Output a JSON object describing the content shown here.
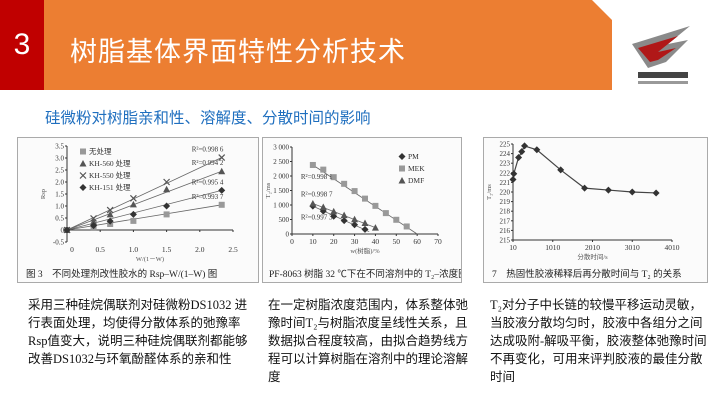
{
  "header": {
    "number": "3",
    "title": "树脂基体界面特性分析技术",
    "accent": "#ec7e32",
    "number_bg": "#c00000"
  },
  "logo": {
    "text": "长春联盟",
    "sub": "GAAST"
  },
  "subtitle": "硅微粉对树脂亲和性、溶解度、分散时间的影响",
  "chart_data": [
    {
      "type": "line",
      "caption": "图 3　不同处理剂改性胶水的 Rsp–W/(1–W) 图",
      "xlabel": "W/(1－W)",
      "ylabel": "Rsp",
      "xlim": [
        0,
        2.5
      ],
      "ylim": [
        -0.5,
        3.5
      ],
      "xticks": [
        0,
        0.5,
        1.0,
        1.5,
        2.0,
        2.5
      ],
      "xtick_labels": [
        "0",
        "0.5",
        "1.0",
        "1.5",
        "2.0",
        "2.5"
      ],
      "yticks": [
        -0.5,
        0,
        0.5,
        1.0,
        1.5,
        2.0,
        2.5,
        3.0,
        3.5
      ],
      "ytick_labels": [
        "-0.5",
        "0",
        "0.5",
        "1.0",
        "1.5",
        "2.0",
        "2.5",
        "3.0",
        "3.5"
      ],
      "legend": "top-left",
      "x": [
        0,
        0.4,
        0.65,
        1.0,
        1.5,
        2.33
      ],
      "series": [
        {
          "name": "无处理",
          "marker": "square",
          "values": [
            0,
            0.12,
            0.25,
            0.38,
            0.65,
            1.05
          ],
          "r2": "R²=0.993 7"
        },
        {
          "name": "KH-560 处理",
          "marker": "triangle",
          "values": [
            0,
            0.35,
            0.65,
            1.07,
            1.7,
            2.45
          ],
          "r2": "R²=0.994 2"
        },
        {
          "name": "KH-550 处理",
          "marker": "cross",
          "values": [
            0,
            0.48,
            0.83,
            1.32,
            2.0,
            3.02
          ],
          "r2": "R²=0.998 6"
        },
        {
          "name": "KH-151 处理",
          "marker": "diamond",
          "values": [
            0,
            0.18,
            0.37,
            0.65,
            1.0,
            1.65
          ],
          "r2": "R²=0.995 4"
        }
      ]
    },
    {
      "type": "line",
      "caption": "PF-8063 树脂 32 ℃下在不同溶剂中的 T₂–浓度图",
      "xlabel": "w(树脂)/%",
      "ylabel": "T₂/ms",
      "xlim": [
        0,
        70
      ],
      "ylim": [
        0,
        3000
      ],
      "xticks": [
        0,
        10,
        20,
        30,
        40,
        50,
        60,
        70
      ],
      "xtick_labels": [
        "0",
        "10",
        "20",
        "30",
        "40",
        "50",
        "60",
        "70"
      ],
      "yticks": [
        0,
        500,
        1000,
        1500,
        2000,
        2500,
        3000
      ],
      "ytick_labels": [
        "0",
        "500",
        "1 000",
        "1 500",
        "2 000",
        "2 500",
        "3 000"
      ],
      "legend": "top-right",
      "series": [
        {
          "name": "PM",
          "marker": "diamond",
          "x": [
            10,
            15,
            20,
            25,
            30,
            35
          ],
          "values": [
            960,
            790,
            610,
            460,
            320,
            160
          ],
          "fit_end": [
            37,
            80
          ],
          "r2": "R²=0.997 3"
        },
        {
          "name": "MEK",
          "marker": "square",
          "x": [
            10,
            15,
            20,
            25,
            30,
            35,
            40,
            45,
            50,
            55
          ],
          "values": [
            2380,
            2220,
            1960,
            1730,
            1480,
            1220,
            970,
            720,
            490,
            260
          ],
          "fit_end": [
            60,
            0
          ],
          "r2": "R²=0.998 1"
        },
        {
          "name": "DMF",
          "marker": "triangle",
          "x": [
            10,
            15,
            20,
            25,
            30,
            35,
            40
          ],
          "values": [
            1050,
            930,
            780,
            650,
            510,
            380,
            220
          ],
          "fit_end": [
            40,
            220
          ],
          "r2": "R²=0.998 7"
        }
      ]
    },
    {
      "type": "line",
      "caption": "7　热固性胶液稀释后再分散时间与 T₂ 的关系",
      "xlabel": "分散时间/s",
      "ylabel": "T₂/ms",
      "xlim": [
        10,
        4010
      ],
      "ylim": [
        215,
        225
      ],
      "xticks": [
        10,
        1010,
        2010,
        3010,
        4010
      ],
      "xtick_labels": [
        "10",
        "1010",
        "2010",
        "3010",
        "4010"
      ],
      "yticks": [
        215,
        216,
        217,
        218,
        219,
        220,
        221,
        222,
        223,
        224,
        225
      ],
      "ytick_labels": [
        "215",
        "216",
        "217",
        "218",
        "219",
        "220",
        "221",
        "222",
        "223",
        "224",
        "225"
      ],
      "series": [
        {
          "marker": "diamond",
          "x": [
            10,
            30,
            150,
            230,
            300,
            610,
            1210,
            1810,
            2410,
            3010,
            3610
          ],
          "values": [
            221.3,
            221.9,
            223.6,
            224.2,
            224.8,
            224.4,
            222.3,
            220.4,
            220.2,
            220.0,
            219.9
          ]
        }
      ]
    }
  ],
  "paragraphs": [
    "采用三种硅烷偶联剂对硅微粉DS1032 进行表面处理，均使得分散体系的弛豫率Rsp值变大，说明三种硅烷偶联剂都能够改善DS1032与环氧酚醛体系的亲和性",
    "在一定树脂浓度范围内，体系整体弛豫时间T₂与树脂浓度呈线性关系，且数据拟合程度较高，由拟合趋势线方程可以计算树脂在溶剂中的理论溶解度",
    "T₂对分子中长链的较慢平移运动灵敏，当胶液分散均匀时，胶液中各组分之间达成吸附-解吸平衡，胶液整体弛豫时间不再变化，可用来评判胶液的最佳分散时间"
  ]
}
